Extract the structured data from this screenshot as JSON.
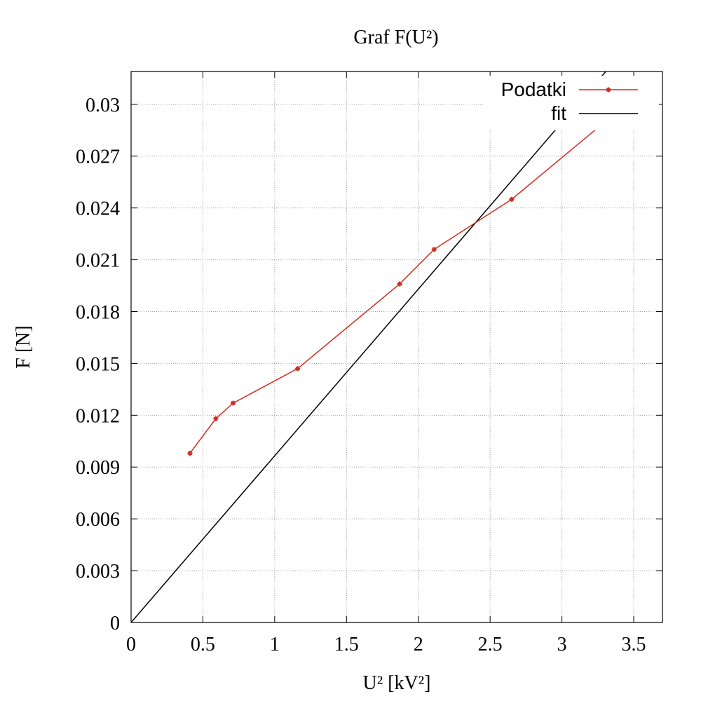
{
  "chart_data": {
    "type": "line",
    "title": "Graf F(U²)",
    "xlabel": "U² [kV²]",
    "ylabel": "F [N]",
    "xlim": [
      0,
      3.7
    ],
    "ylim": [
      0,
      0.0319
    ],
    "x_ticks": [
      0,
      0.5,
      1,
      1.5,
      2,
      2.5,
      3,
      3.5
    ],
    "x_tick_labels": [
      "0",
      "0.5",
      "1",
      "1.5",
      "2",
      "2.5",
      "3",
      "3.5"
    ],
    "y_ticks": [
      0,
      0.003,
      0.006,
      0.009,
      0.012,
      0.015,
      0.018,
      0.021,
      0.024,
      0.027,
      0.03
    ],
    "y_tick_labels": [
      "0",
      "0.003",
      "0.006",
      "0.009",
      "0.012",
      "0.015",
      "0.018",
      "0.021",
      "0.024",
      "0.027",
      "0.03"
    ],
    "grid": true,
    "legend_position": "top-right",
    "series": [
      {
        "name": "Podatki",
        "color": "#d42a1f",
        "style": "linespoints",
        "x": [
          0.41,
          0.59,
          0.71,
          1.16,
          1.87,
          2.11,
          2.65,
          3.36,
          3.62
        ],
        "y": [
          0.0098,
          0.0118,
          0.0127,
          0.0147,
          0.0196,
          0.0216,
          0.0245,
          0.0294,
          0.0313
        ]
      },
      {
        "name": "fit",
        "color": "#000000",
        "style": "line",
        "slope": 0.00965,
        "intercept": 0
      }
    ]
  }
}
